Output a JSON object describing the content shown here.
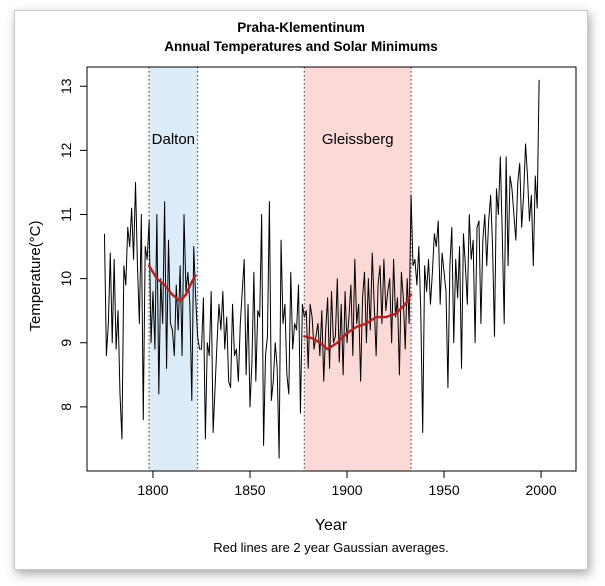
{
  "chart_data": {
    "type": "line",
    "title_line1": "Praha-Klementinum",
    "title_line2": "Annual Temperatures and Solar Minimums",
    "xlabel": "Year",
    "ylabel": "Temperature(°C)",
    "caption": "Red lines are 2 year Gaussian averages.",
    "xlim": [
      1766,
      2018
    ],
    "ylim": [
      7.0,
      13.3
    ],
    "x_ticks": [
      1800,
      1850,
      1900,
      1950,
      2000
    ],
    "y_ticks": [
      8,
      9,
      10,
      11,
      12,
      13
    ],
    "grid": false,
    "colors": {
      "series": "#000000",
      "smooth": "#b22222",
      "dalton_fill": "#dcecf8",
      "gleissberg_fill": "#fbd9d6"
    },
    "regions": [
      {
        "label": "Dalton",
        "x_start": 1798,
        "x_end": 1823
      },
      {
        "label": "Gleissberg",
        "x_start": 1878,
        "x_end": 1933
      }
    ],
    "series": [
      {
        "x_start": 1775,
        "values": [
          10.7,
          8.8,
          9.3,
          10.4,
          9.0,
          10.3,
          8.9,
          9.5,
          8.2,
          7.5,
          10.2,
          9.9,
          10.8,
          10.5,
          11.1,
          10.3,
          11.5,
          10.2,
          9.3,
          11.0,
          7.8,
          10.5,
          10.3,
          10.9,
          9.0,
          9.8,
          8.9,
          11.0,
          8.2,
          10.0,
          9.3,
          11.2,
          8.6,
          10.6,
          9.3,
          9.2,
          8.8,
          9.9,
          9.2,
          10.2,
          8.8,
          11.0,
          9.8,
          10.1,
          9.6,
          8.1,
          10.5,
          9.7,
          9.1,
          8.9,
          8.9,
          9.7,
          7.5,
          9.0,
          8.8,
          9.8,
          7.6,
          8.3,
          9.0,
          9.6,
          9.2,
          9.8,
          8.9,
          9.4,
          8.4,
          8.3,
          9.6,
          8.8,
          8.9,
          8.4,
          9.3,
          9.8,
          10.3,
          8.5,
          9.6,
          8.0,
          8.7,
          10.1,
          8.4,
          9.5,
          9.4,
          11.0,
          7.4,
          8.8,
          9.1,
          11.2,
          8.1,
          8.4,
          9.0,
          8.6,
          7.2,
          10.6,
          9.3,
          9.6,
          8.5,
          8.2,
          10.1,
          8.9,
          9.3,
          9.2,
          9.9,
          7.9,
          9.6,
          9.4,
          9.5,
          8.6,
          9.6,
          9.4,
          8.9,
          9.1,
          9.3,
          8.8,
          9.5,
          8.4,
          9.2,
          9.7,
          8.6,
          9.8,
          9.0,
          9.1,
          10.0,
          8.7,
          9.6,
          8.5,
          9.8,
          9.0,
          9.4,
          9.9,
          8.8,
          10.3,
          9.3,
          9.6,
          8.4,
          9.7,
          10.1,
          9.0,
          10.0,
          9.2,
          10.4,
          9.6,
          8.8,
          9.9,
          10.2,
          9.3,
          10.3,
          9.5,
          9.8,
          10.0,
          9.0,
          10.3,
          9.4,
          9.7,
          8.5,
          10.1,
          9.7,
          8.9,
          10.0,
          9.3,
          11.3,
          10.2,
          10.3,
          9.9,
          10.5,
          9.5,
          7.6,
          10.2,
          9.8,
          10.3,
          9.6,
          10.1,
          10.7,
          10.5,
          10.9,
          9.6,
          10.4,
          10.1,
          9.8,
          8.3,
          10.2,
          10.8,
          9.0,
          10.3,
          9.7,
          10.5,
          8.6,
          10.7,
          10.2,
          9.6,
          11.0,
          10.3,
          10.6,
          9.0,
          10.8,
          10.9,
          9.3,
          10.6,
          11.0,
          10.2,
          10.9,
          11.3,
          10.5,
          9.1,
          11.4,
          11.0,
          11.9,
          10.7,
          9.3,
          11.9,
          10.2,
          11.6,
          11.4,
          11.0,
          10.6,
          11.5,
          11.8,
          10.8,
          11.3,
          12.1,
          11.6,
          10.9,
          11.3,
          10.2,
          11.6,
          11.1,
          13.1
        ]
      }
    ],
    "smooth_lines": [
      {
        "x": [
          1798,
          1802,
          1806,
          1810,
          1814,
          1817,
          1820,
          1822
        ],
        "y": [
          10.2,
          10.0,
          9.9,
          9.75,
          9.65,
          9.75,
          9.95,
          10.05
        ]
      },
      {
        "x": [
          1878,
          1882,
          1886,
          1890,
          1895,
          1900,
          1905,
          1910,
          1915,
          1920,
          1925,
          1930,
          1933
        ],
        "y": [
          9.1,
          9.07,
          9.0,
          8.9,
          9.0,
          9.15,
          9.25,
          9.3,
          9.4,
          9.4,
          9.45,
          9.6,
          9.75
        ]
      }
    ]
  }
}
